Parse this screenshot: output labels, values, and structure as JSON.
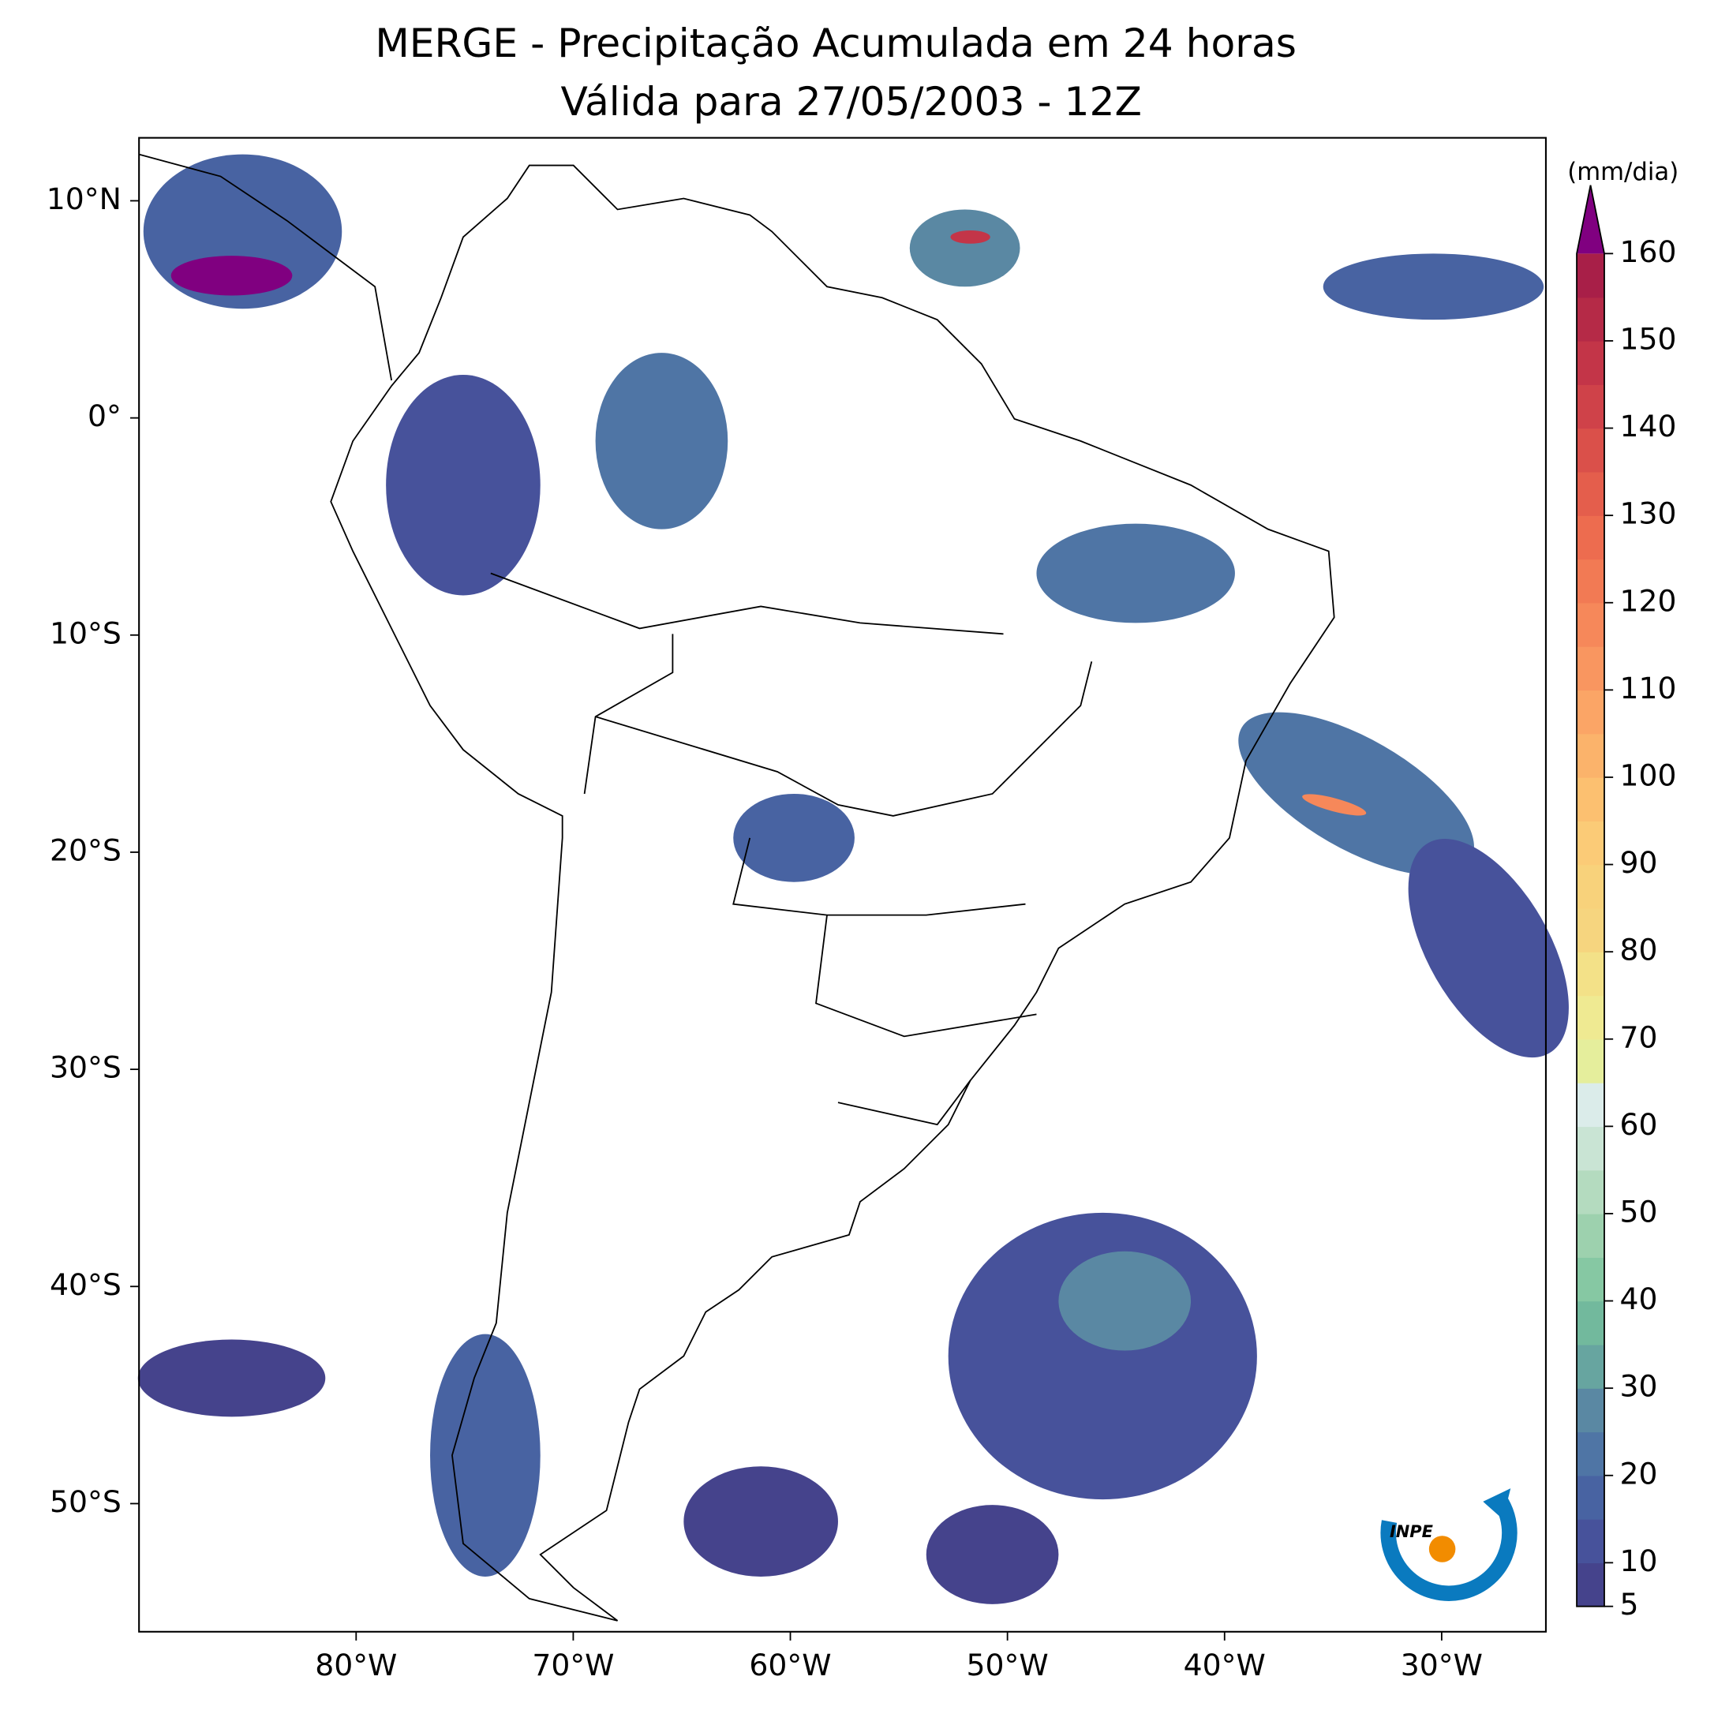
{
  "chart_data": {
    "type": "map",
    "title": "MERGE - Precipitação Acumulada em 24 horas",
    "subtitle": "Válida para 27/05/2003 - 12Z",
    "xlim": [
      -90,
      -25.2
    ],
    "ylim": [
      -55.9,
      12.9
    ],
    "xticks": [
      {
        "value": -80,
        "label": "80°W"
      },
      {
        "value": -70,
        "label": "70°W"
      },
      {
        "value": -60,
        "label": "60°W"
      },
      {
        "value": -50,
        "label": "50°W"
      },
      {
        "value": -40,
        "label": "40°W"
      },
      {
        "value": -30,
        "label": "30°W"
      }
    ],
    "yticks": [
      {
        "value": 10,
        "label": "10°N"
      },
      {
        "value": 0,
        "label": "0°"
      },
      {
        "value": -10,
        "label": "10°S"
      },
      {
        "value": -20,
        "label": "20°S"
      },
      {
        "value": -30,
        "label": "30°S"
      },
      {
        "value": -40,
        "label": "40°S"
      },
      {
        "value": -50,
        "label": "50°S"
      }
    ],
    "colorbar": {
      "label": "(mm/dia)",
      "lim": [
        5,
        160
      ],
      "ticks": [
        5,
        10,
        20,
        30,
        40,
        50,
        60,
        70,
        80,
        90,
        100,
        110,
        120,
        130,
        140,
        150,
        160
      ],
      "colors": [
        "#45438c",
        "#47529b",
        "#4863a2",
        "#4f75a5",
        "#5a88a3",
        "#67a5a0",
        "#72b99d",
        "#86c8a3",
        "#9dd1ae",
        "#b4dbbf",
        "#c9e4d4",
        "#dbecea",
        "#e5ee9c",
        "#efea92",
        "#f3e188",
        "#f6d57f",
        "#f8d27b",
        "#fbcb77",
        "#fcc070",
        "#fbb36b",
        "#fba566",
        "#f99660",
        "#f6885a",
        "#f27a54",
        "#ed6c4f",
        "#e45e4c",
        "#da504a",
        "#cf4249",
        "#c33548",
        "#b52a47",
        "#a81f48"
      ],
      "extend_color": "#800080"
    },
    "logo": "INPE"
  }
}
